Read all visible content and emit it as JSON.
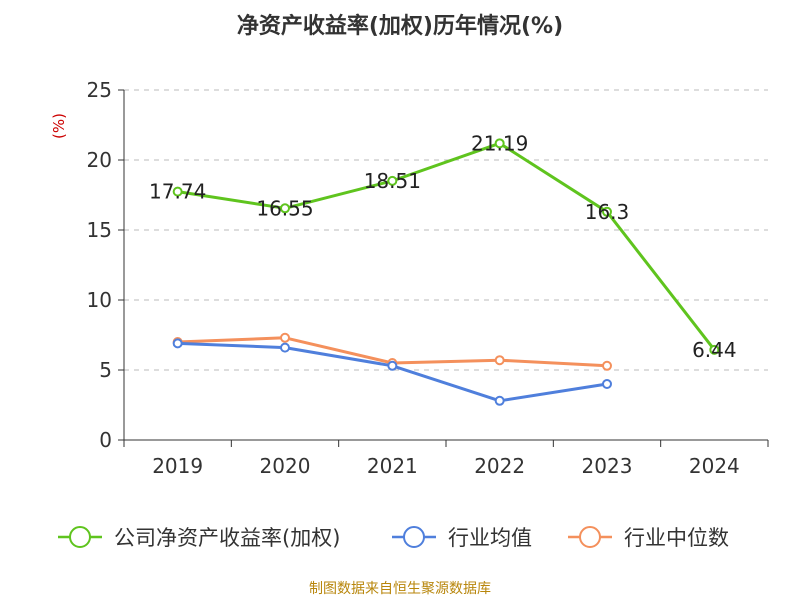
{
  "chart_data": {
    "type": "line",
    "title": "净资产收益率(加权)历年情况(%)",
    "ylabel": "(%)",
    "xlabel": "",
    "categories": [
      "2019",
      "2020",
      "2021",
      "2022",
      "2023",
      "2024"
    ],
    "ylim": [
      0,
      25
    ],
    "yticks": [
      0,
      5,
      10,
      15,
      20,
      25
    ],
    "grid": "horizontal-dashed",
    "legend_position": "bottom",
    "series": [
      {
        "name": "公司净资产收益率(加权)",
        "color": "#5fc41e",
        "values": [
          17.74,
          16.55,
          18.51,
          21.19,
          16.3,
          6.44
        ],
        "labels": [
          "17.74",
          "16.55",
          "18.51",
          "21.19",
          "16.3",
          "6.44"
        ]
      },
      {
        "name": "行业均值",
        "color": "#4f7fdc",
        "values": [
          6.9,
          6.6,
          5.3,
          2.8,
          4.0,
          null
        ]
      },
      {
        "name": "行业中位数",
        "color": "#f4905c",
        "values": [
          7.0,
          7.3,
          5.5,
          5.7,
          5.3,
          null
        ]
      }
    ]
  },
  "footer": "制图数据来自恒生聚源数据库"
}
